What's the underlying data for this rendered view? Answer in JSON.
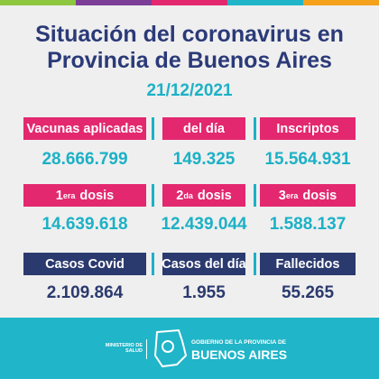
{
  "header": {
    "title_line1": "Situación del coronavirus en",
    "title_line2": "Provincia de Buenos Aires",
    "date": "21/12/2021"
  },
  "rows": [
    {
      "cells": [
        {
          "label": "Vacunas aplicadas",
          "value": "28.666.799"
        },
        {
          "label": "del día",
          "value": "149.325"
        },
        {
          "label": "Inscriptos",
          "value": "15.564.931"
        }
      ]
    },
    {
      "cells": [
        {
          "label": {
            "num": "1",
            "sup": "era",
            "word": "dosis"
          },
          "value": "14.639.618"
        },
        {
          "label": {
            "num": "2",
            "sup": "da",
            "word": "dosis"
          },
          "value": "12.439.044"
        },
        {
          "label": {
            "num": "3",
            "sup": "era",
            "word": "dosis"
          },
          "value": "1.588.137"
        }
      ]
    },
    {
      "cells": [
        {
          "label": "Casos Covid",
          "value": "2.109.864"
        },
        {
          "label": "Casos del día",
          "value": "1.955"
        },
        {
          "label": "Fallecidos",
          "value": "55.265"
        }
      ]
    }
  ],
  "footer": {
    "ministry_line1": "MINISTERIO DE",
    "ministry_line2": "SALUD",
    "gov_line1": "GOBIERNO DE LA PROVINCIA DE",
    "gov_line2": "BUENOS AIRES"
  }
}
